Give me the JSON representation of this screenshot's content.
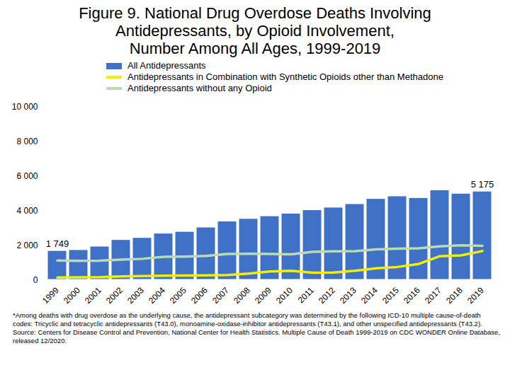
{
  "chart_data": {
    "type": "bar",
    "title": "Figure 9. National Drug Overdose Deaths Involving Antidepressants, by Opioid Involvement, Number Among All Ages, 1999-2019",
    "categories": [
      "1999",
      "2000",
      "2001",
      "2002",
      "2003",
      "2004",
      "2005",
      "2006",
      "2007",
      "2008",
      "2009",
      "2010",
      "2011",
      "2012",
      "2013",
      "2014",
      "2015",
      "2016",
      "2017",
      "2018",
      "2019"
    ],
    "series": [
      {
        "name": "All Antidepressants",
        "type": "bar",
        "color": "#3f72c6",
        "values": [
          1749,
          1800,
          2000,
          2380,
          2500,
          2750,
          2850,
          3100,
          3450,
          3600,
          3750,
          3900,
          4100,
          4250,
          4450,
          4750,
          4900,
          4800,
          5250,
          5050,
          5175
        ],
        "data_labels": true,
        "value_labels": [
          "1 749",
          null,
          null,
          null,
          null,
          null,
          null,
          null,
          null,
          null,
          null,
          null,
          null,
          null,
          null,
          null,
          null,
          null,
          null,
          null,
          "5 175"
        ]
      },
      {
        "name": "Antidepressants in Combination with Synthetic Opioids other than Methadone",
        "type": "line",
        "color": "#f2ee00",
        "values": [
          170,
          180,
          190,
          230,
          260,
          280,
          290,
          300,
          320,
          400,
          520,
          560,
          450,
          460,
          560,
          700,
          780,
          950,
          1400,
          1450,
          1700
        ]
      },
      {
        "name": "Antidepressants without any Opioid",
        "type": "line",
        "color": "#bcd9b4",
        "values": [
          1150,
          1130,
          1140,
          1200,
          1250,
          1370,
          1380,
          1420,
          1530,
          1540,
          1530,
          1510,
          1650,
          1680,
          1690,
          1800,
          1840,
          1860,
          1970,
          2030,
          2000
        ]
      }
    ],
    "ylim": [
      0,
      10000
    ],
    "yticks": [
      {
        "value": 0,
        "label": "0"
      },
      {
        "value": 2000,
        "label": "2 000"
      },
      {
        "value": 4000,
        "label": "4 000"
      },
      {
        "value": 6000,
        "label": "6 000"
      },
      {
        "value": 8000,
        "label": "8 000"
      },
      {
        "value": 10000,
        "label": "10 000"
      }
    ],
    "grid": false,
    "legend": "top",
    "footnote": "*Among deaths with drug overdose as the underlying cause, the antidepressant subcategory was determined by the following ICD-10 multiple cause-of-death codes: Tricyclic and tetracyclic antidepressants (T43.0), monoamine-oxidase-inhibitor antidepressants (T43.1), and other unspecified antidepressants (T43.2). Source: Centers for Disease Control and Prevention, National Center for Health Statistics. Multiple Cause of Death 1999-2019 on CDC WONDER Online Database, released 12/2020."
  }
}
